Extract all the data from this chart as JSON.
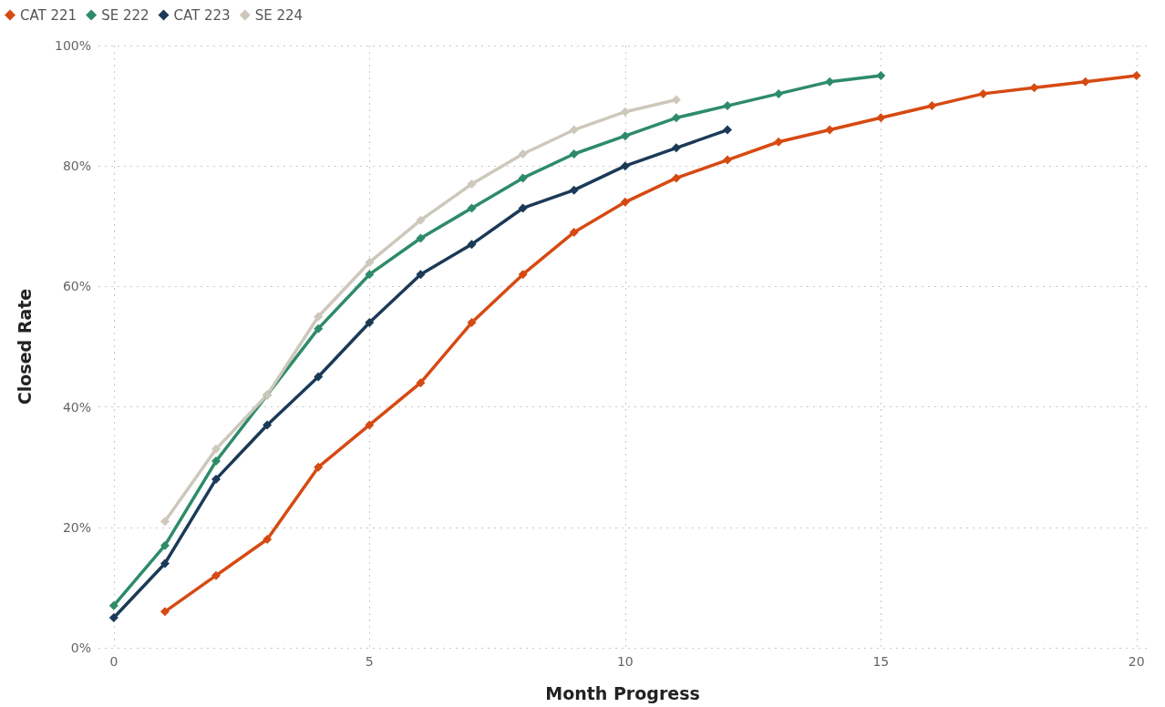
{
  "chart_data": {
    "type": "line",
    "xlabel": "Month Progress",
    "ylabel": "Closed Rate",
    "xlim": [
      -0.3,
      20.2
    ],
    "xticks": [
      0,
      5,
      10,
      15,
      20
    ],
    "ylim": [
      0,
      100
    ],
    "yticks": [
      {
        "value": 0,
        "label": "0%"
      },
      {
        "value": 20,
        "label": "20%"
      },
      {
        "value": 40,
        "label": "40%"
      },
      {
        "value": 60,
        "label": "60%"
      },
      {
        "value": 80,
        "label": "80%"
      },
      {
        "value": 100,
        "label": "100%"
      }
    ],
    "grid": true,
    "legend": "top left",
    "marker": "diamond",
    "line_style": "solid",
    "series": [
      {
        "name": "CAT 221",
        "color": "#d64a12",
        "x": [
          1,
          2,
          3,
          4,
          5,
          6,
          7,
          8,
          9,
          10,
          11,
          12,
          13,
          14,
          15,
          16,
          17,
          18,
          19,
          20
        ],
        "values": [
          6,
          12,
          18,
          30,
          37,
          44,
          54,
          62,
          69,
          74,
          78,
          81,
          84,
          86,
          88,
          90,
          92,
          93,
          94,
          95
        ]
      },
      {
        "name": "SE 222",
        "color": "#2e8b6a",
        "x": [
          0,
          1,
          2,
          3,
          4,
          5,
          6,
          7,
          8,
          9,
          10,
          11,
          12,
          13,
          14,
          15
        ],
        "values": [
          7,
          17,
          31,
          42,
          53,
          62,
          68,
          73,
          78,
          82,
          85,
          88,
          90,
          92,
          94,
          95
        ]
      },
      {
        "name": "CAT 223",
        "color": "#1b3a57",
        "x": [
          0,
          1,
          2,
          3,
          4,
          5,
          6,
          7,
          8,
          9,
          10,
          11,
          12
        ],
        "values": [
          5,
          14,
          28,
          37,
          45,
          54,
          62,
          67,
          73,
          76,
          80,
          83,
          86
        ]
      },
      {
        "name": "SE 224",
        "color": "#cdc8bb",
        "x": [
          1,
          2,
          3,
          4,
          5,
          6,
          7,
          8,
          9,
          10,
          11
        ],
        "values": [
          21,
          33,
          42,
          55,
          64,
          71,
          77,
          82,
          86,
          89,
          91
        ]
      }
    ]
  }
}
